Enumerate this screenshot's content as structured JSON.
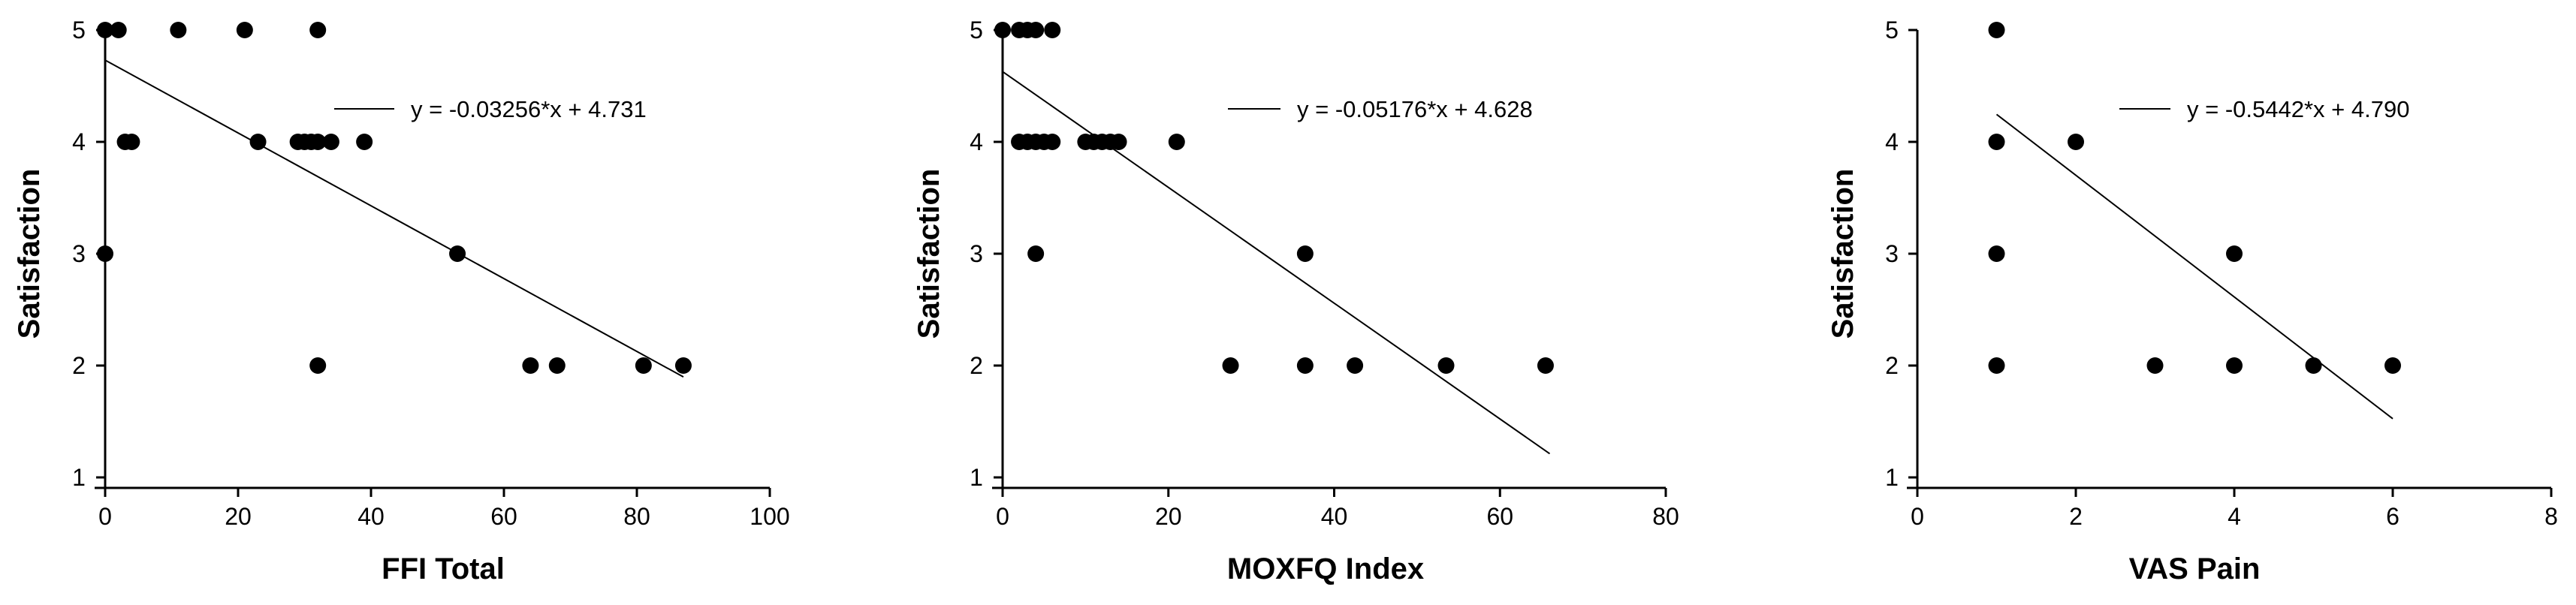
{
  "chart_data": [
    {
      "type": "scatter",
      "xlabel": "FFI Total",
      "ylabel": "Satisfaction",
      "xlim": [
        0,
        100
      ],
      "ylim": [
        1,
        5
      ],
      "xticks": [
        0,
        20,
        40,
        60,
        80,
        100
      ],
      "yticks": [
        1,
        2,
        3,
        4,
        5
      ],
      "points": [
        [
          0,
          5
        ],
        [
          2,
          5
        ],
        [
          11,
          5
        ],
        [
          21,
          5
        ],
        [
          32,
          5
        ],
        [
          3,
          4
        ],
        [
          4,
          4
        ],
        [
          23,
          4
        ],
        [
          29,
          4
        ],
        [
          30,
          4
        ],
        [
          31,
          4
        ],
        [
          32,
          4
        ],
        [
          34,
          4
        ],
        [
          39,
          4
        ],
        [
          0,
          3
        ],
        [
          53,
          3
        ],
        [
          32,
          2
        ],
        [
          64,
          2
        ],
        [
          68,
          2
        ],
        [
          81,
          2
        ],
        [
          87,
          2
        ]
      ],
      "fit": {
        "slope": -0.03256,
        "intercept": 4.731,
        "x_range": [
          0,
          87
        ]
      },
      "equation": "y = -0.03256*x + 4.731"
    },
    {
      "type": "scatter",
      "xlabel": "MOXFQ Index",
      "ylabel": "Satisfaction",
      "xlim": [
        0,
        80
      ],
      "ylim": [
        1,
        5
      ],
      "xticks": [
        0,
        20,
        40,
        60,
        80
      ],
      "yticks": [
        1,
        2,
        3,
        4,
        5
      ],
      "points": [
        [
          0,
          5
        ],
        [
          2,
          5
        ],
        [
          3,
          5
        ],
        [
          4,
          5
        ],
        [
          6,
          5
        ],
        [
          2,
          4
        ],
        [
          3,
          4
        ],
        [
          4,
          4
        ],
        [
          5,
          4
        ],
        [
          6,
          4
        ],
        [
          10,
          4
        ],
        [
          11,
          4
        ],
        [
          12,
          4
        ],
        [
          13,
          4
        ],
        [
          14,
          4
        ],
        [
          21,
          4
        ],
        [
          4,
          3
        ],
        [
          36.5,
          3
        ],
        [
          27.5,
          2
        ],
        [
          36.5,
          2
        ],
        [
          42.5,
          2
        ],
        [
          53.5,
          2
        ],
        [
          65.5,
          2
        ]
      ],
      "fit": {
        "slope": -0.05176,
        "intercept": 4.628,
        "x_range": [
          0,
          66
        ]
      },
      "equation": "y = -0.05176*x + 4.628"
    },
    {
      "type": "scatter",
      "xlabel": "VAS Pain",
      "ylabel": "Satisfaction",
      "xlim": [
        0,
        8
      ],
      "ylim": [
        1,
        5
      ],
      "xticks": [
        0,
        2,
        4,
        6,
        8
      ],
      "yticks": [
        1,
        2,
        3,
        4,
        5
      ],
      "points": [
        [
          1,
          5
        ],
        [
          1,
          4
        ],
        [
          2,
          4
        ],
        [
          1,
          3
        ],
        [
          4,
          3
        ],
        [
          1,
          2
        ],
        [
          3,
          2
        ],
        [
          4,
          2
        ],
        [
          5,
          2
        ],
        [
          6,
          2
        ]
      ],
      "fit": {
        "slope": -0.5442,
        "intercept": 4.79,
        "x_range": [
          1,
          6
        ]
      },
      "equation": "y = -0.5442*x + 4.790"
    }
  ]
}
